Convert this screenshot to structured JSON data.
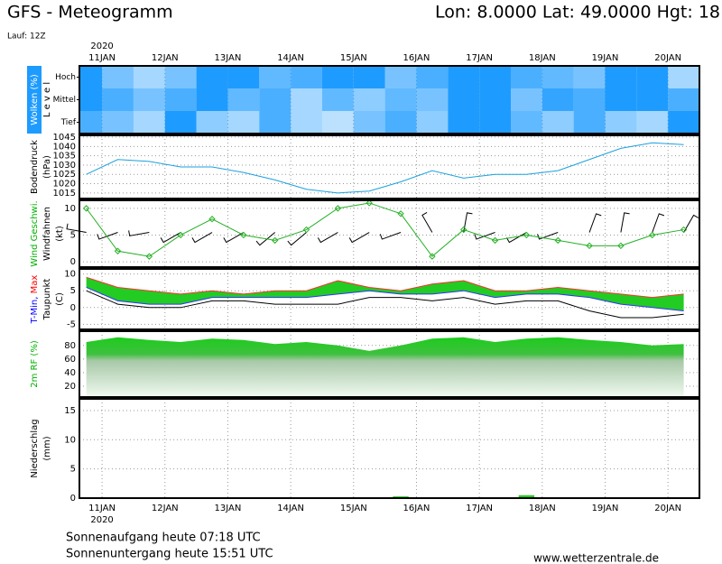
{
  "header": {
    "title": "GFS - Meteogramm",
    "location": "Lon: 8.0000 Lat: 49.0000 Hgt: 18",
    "run": "Lauf: 12Z"
  },
  "chart_data": [
    {
      "type": "heatmap",
      "ylabel": [
        [
          "Wolken (%)"
        ],
        [
          "L e v e l"
        ]
      ],
      "ylabel_colors": [
        [
          "#ffffff"
        ],
        [
          "#000000"
        ]
      ],
      "rows": [
        "Hoch",
        "Mittel",
        "Tief"
      ],
      "color": "#1e9bff",
      "x_label": "2020",
      "x": [
        10.75,
        11.25,
        11.75,
        12.25,
        12.75,
        13.25,
        13.75,
        14.25,
        14.75,
        15.25,
        15.75,
        16.25,
        16.75,
        17.25,
        17.75,
        18.25,
        18.75,
        19.25,
        19.75,
        20.25
      ],
      "xlim": [
        10.64,
        20.5
      ],
      "xticks": [
        {
          "value": 11,
          "label": "11JAN"
        },
        {
          "value": 12,
          "label": "12JAN"
        },
        {
          "value": 13,
          "label": "13JAN"
        },
        {
          "value": 14,
          "label": "14JAN"
        },
        {
          "value": 15,
          "label": "15JAN"
        },
        {
          "value": 16,
          "label": "16JAN"
        },
        {
          "value": 17,
          "label": "17JAN"
        },
        {
          "value": 18,
          "label": "18JAN"
        },
        {
          "value": 19,
          "label": "19JAN"
        },
        {
          "value": 20,
          "label": "20JAN"
        }
      ],
      "values": [
        [
          100,
          60,
          40,
          60,
          100,
          100,
          70,
          80,
          100,
          100,
          60,
          80,
          100,
          100,
          80,
          70,
          60,
          100,
          100,
          40
        ],
        [
          100,
          80,
          60,
          80,
          100,
          70,
          80,
          40,
          70,
          50,
          70,
          60,
          100,
          100,
          60,
          90,
          80,
          100,
          100,
          80
        ],
        [
          80,
          60,
          40,
          100,
          50,
          40,
          80,
          40,
          30,
          60,
          80,
          50,
          100,
          100,
          70,
          50,
          80,
          50,
          40,
          100
        ]
      ]
    },
    {
      "type": "line",
      "ylabel": [
        [
          "Bodendruck"
        ],
        [
          "(hPa)"
        ]
      ],
      "ylabel_colors": [
        [
          "#000000"
        ],
        [
          "#000000"
        ]
      ],
      "color": "#1aa0e0",
      "x": [
        10.75,
        11.25,
        11.75,
        12.25,
        12.75,
        13.25,
        13.75,
        14.25,
        14.75,
        15.25,
        15.75,
        16.25,
        16.75,
        17.25,
        17.75,
        18.25,
        18.75,
        19.25,
        19.75,
        20.25
      ],
      "xlim": [
        10.64,
        20.5
      ],
      "xticks": [
        {
          "value": 11,
          "label": "11JAN"
        },
        {
          "value": 12,
          "label": "12JAN"
        },
        {
          "value": 13,
          "label": "13JAN"
        },
        {
          "value": 14,
          "label": "14JAN"
        },
        {
          "value": 15,
          "label": "15JAN"
        },
        {
          "value": 16,
          "label": "16JAN"
        },
        {
          "value": 17,
          "label": "17JAN"
        },
        {
          "value": 18,
          "label": "18JAN"
        },
        {
          "value": 19,
          "label": "19JAN"
        },
        {
          "value": 20,
          "label": "20JAN"
        }
      ],
      "ylim": [
        1012,
        1046
      ],
      "yticks": [
        1015,
        1020,
        1025,
        1030,
        1035,
        1040,
        1045
      ],
      "values": [
        1025,
        1033,
        1032,
        1029,
        1029,
        1026,
        1022,
        1017,
        1015,
        1016,
        1021,
        1027,
        1023,
        1025,
        1025,
        1027,
        1033,
        1039,
        1042,
        1041
      ]
    },
    {
      "type": "wind",
      "ylabel": [
        [
          "Wind Geschwi."
        ],
        [
          "Windfahnen"
        ],
        [
          "(kt)"
        ]
      ],
      "ylabel_colors": [
        [
          "#00b000"
        ],
        [
          "#000000"
        ],
        [
          "#000000"
        ]
      ],
      "color": "#22b022",
      "barb_color": "#000000",
      "x": [
        10.75,
        11.25,
        11.75,
        12.25,
        12.75,
        13.25,
        13.75,
        14.25,
        14.75,
        15.25,
        15.75,
        16.25,
        16.75,
        17.25,
        17.75,
        18.25,
        18.75,
        19.25,
        19.75,
        20.25
      ],
      "xlim": [
        10.64,
        20.5
      ],
      "xticks": [
        {
          "value": 11,
          "label": "11JAN"
        },
        {
          "value": 12,
          "label": "12JAN"
        },
        {
          "value": 13,
          "label": "13JAN"
        },
        {
          "value": 14,
          "label": "14JAN"
        },
        {
          "value": 15,
          "label": "15JAN"
        },
        {
          "value": 16,
          "label": "16JAN"
        },
        {
          "value": 17,
          "label": "17JAN"
        },
        {
          "value": 18,
          "label": "18JAN"
        },
        {
          "value": 19,
          "label": "19JAN"
        },
        {
          "value": 20,
          "label": "20JAN"
        }
      ],
      "ylim": [
        -1,
        11.5
      ],
      "yticks": [
        0,
        5,
        10
      ],
      "values": [
        10,
        2,
        1,
        5,
        8,
        5,
        4,
        6,
        10,
        11,
        9,
        1,
        6,
        4,
        5,
        4,
        3,
        3,
        5,
        6
      ],
      "directions": [
        280,
        250,
        260,
        240,
        240,
        240,
        230,
        230,
        240,
        240,
        250,
        330,
        10,
        250,
        240,
        250,
        20,
        10,
        20,
        30
      ]
    },
    {
      "type": "band",
      "ylabel": [
        [
          "T-Min,",
          "Max"
        ],
        [
          "Taupunkt"
        ],
        [
          "(C)"
        ]
      ],
      "ylabel_colors": [
        [
          "#0000ff",
          "#ff0000"
        ],
        [
          "#000000"
        ],
        [
          "#000000"
        ]
      ],
      "fill": "#22cc22",
      "tmax_color": "#ff3030",
      "tmin_color": "#3030ff",
      "dew_color": "#000000",
      "x": [
        10.75,
        11.25,
        11.75,
        12.25,
        12.75,
        13.25,
        13.75,
        14.25,
        14.75,
        15.25,
        15.75,
        16.25,
        16.75,
        17.25,
        17.75,
        18.25,
        18.75,
        19.25,
        19.75,
        20.25
      ],
      "xlim": [
        10.64,
        20.5
      ],
      "xticks": [
        {
          "value": 11,
          "label": "11JAN"
        },
        {
          "value": 12,
          "label": "12JAN"
        },
        {
          "value": 13,
          "label": "13JAN"
        },
        {
          "value": 14,
          "label": "14JAN"
        },
        {
          "value": 15,
          "label": "15JAN"
        },
        {
          "value": 16,
          "label": "16JAN"
        },
        {
          "value": 17,
          "label": "17JAN"
        },
        {
          "value": 18,
          "label": "18JAN"
        },
        {
          "value": 19,
          "label": "19JAN"
        },
        {
          "value": 20,
          "label": "20JAN"
        }
      ],
      "ylim": [
        -6.5,
        11.5
      ],
      "yticks": [
        -5,
        0,
        5,
        10
      ],
      "tmax": [
        9,
        6,
        5,
        4,
        5,
        4,
        5,
        5,
        8,
        6,
        5,
        7,
        8,
        5,
        5,
        6,
        5,
        4,
        3,
        4
      ],
      "tmin": [
        6,
        2,
        1,
        1,
        3,
        3,
        3,
        3,
        4,
        5,
        4,
        4,
        5,
        3,
        4,
        4,
        3,
        1,
        0,
        -1
      ],
      "dewpoint": [
        5,
        1,
        0,
        0,
        2,
        2,
        1,
        1,
        1,
        3,
        3,
        2,
        3,
        1,
        2,
        2,
        -1,
        -3,
        -3,
        -2
      ]
    },
    {
      "type": "area",
      "ylabel": [
        [
          "2m RF (%)"
        ]
      ],
      "ylabel_colors": [
        [
          "#00b000"
        ]
      ],
      "color": "#22cc22",
      "x": [
        10.75,
        11.25,
        11.75,
        12.25,
        12.75,
        13.25,
        13.75,
        14.25,
        14.75,
        15.25,
        15.75,
        16.25,
        16.75,
        17.25,
        17.75,
        18.25,
        18.75,
        19.25,
        19.75,
        20.25
      ],
      "xlim": [
        10.64,
        20.5
      ],
      "xticks": [
        {
          "value": 11,
          "label": "11JAN"
        },
        {
          "value": 12,
          "label": "12JAN"
        },
        {
          "value": 13,
          "label": "13JAN"
        },
        {
          "value": 14,
          "label": "14JAN"
        },
        {
          "value": 15,
          "label": "15JAN"
        },
        {
          "value": 16,
          "label": "16JAN"
        },
        {
          "value": 17,
          "label": "17JAN"
        },
        {
          "value": 18,
          "label": "18JAN"
        },
        {
          "value": 19,
          "label": "19JAN"
        },
        {
          "value": 20,
          "label": "20JAN"
        }
      ],
      "ylim": [
        4,
        101
      ],
      "yticks": [
        20,
        40,
        60,
        80
      ],
      "values": [
        85,
        92,
        88,
        85,
        90,
        88,
        82,
        85,
        80,
        72,
        80,
        90,
        92,
        85,
        90,
        92,
        88,
        85,
        80,
        82
      ]
    },
    {
      "type": "bar",
      "ylabel": [
        [
          "Niederschlag"
        ],
        [
          "(mm)"
        ]
      ],
      "ylabel_colors": [
        [
          "#000000"
        ],
        [
          "#000000"
        ]
      ],
      "color": "#22cc22",
      "x_label": "2020",
      "x": [
        10.75,
        11.25,
        11.75,
        12.25,
        12.75,
        13.25,
        13.75,
        14.25,
        14.75,
        15.25,
        15.75,
        16.25,
        16.75,
        17.25,
        17.75,
        18.25,
        18.75,
        19.25,
        19.75,
        20.25
      ],
      "xlim": [
        10.64,
        20.5
      ],
      "xticks": [
        {
          "value": 11,
          "label": "11JAN"
        },
        {
          "value": 12,
          "label": "12JAN"
        },
        {
          "value": 13,
          "label": "13JAN"
        },
        {
          "value": 14,
          "label": "14JAN"
        },
        {
          "value": 15,
          "label": "15JAN"
        },
        {
          "value": 16,
          "label": "16JAN"
        },
        {
          "value": 17,
          "label": "17JAN"
        },
        {
          "value": 18,
          "label": "18JAN"
        },
        {
          "value": 19,
          "label": "19JAN"
        },
        {
          "value": 20,
          "label": "20JAN"
        }
      ],
      "ylim": [
        0,
        17
      ],
      "yticks": [
        0,
        5,
        10,
        15
      ],
      "values": [
        0,
        0,
        0,
        0,
        0,
        0,
        0,
        0,
        0,
        0,
        0.3,
        0,
        0,
        0,
        0.5,
        0,
        0,
        0,
        0,
        0
      ]
    }
  ],
  "footer": {
    "sunrise": "Sonnenaufgang heute 07:18 UTC",
    "sunset": "Sonnenuntergang heute 15:51 UTC",
    "source": "www.wetterzentrale.de"
  }
}
